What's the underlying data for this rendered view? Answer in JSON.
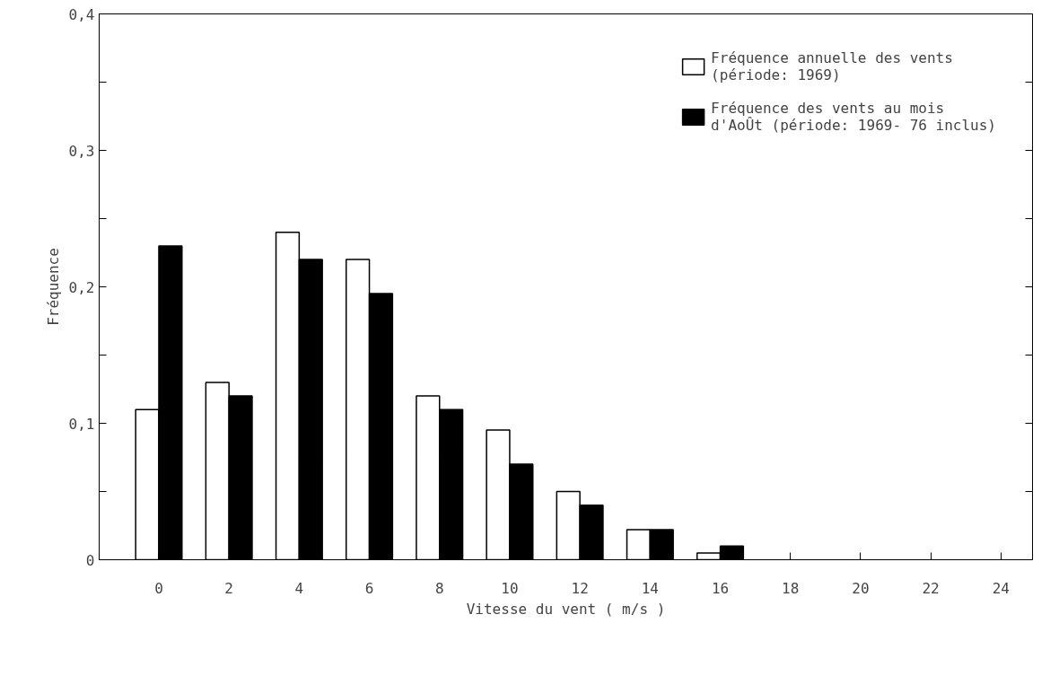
{
  "chart_data": {
    "type": "bar",
    "xlabel": "Vitesse du vent ( m/s )",
    "ylabel": "Fréquence",
    "x": [
      0,
      2,
      4,
      6,
      8,
      10,
      12,
      14,
      16
    ],
    "series": [
      {
        "name": "Fréquence annuelle des vents\n(période: 1969)",
        "color": "#ffffff",
        "values": [
          0.11,
          0.13,
          0.24,
          0.22,
          0.12,
          0.095,
          0.05,
          0.022,
          0.005
        ]
      },
      {
        "name": "Fréquence des vents au mois\nd'AoÛt (période: 1969- 76 inclus)",
        "color": "#000000",
        "values": [
          0.23,
          0.12,
          0.22,
          0.195,
          0.11,
          0.07,
          0.04,
          0.022,
          0.01
        ]
      }
    ],
    "xlim": [
      -1.7,
      24.9
    ],
    "ylim": [
      0,
      0.4
    ],
    "xticks": [
      0,
      2,
      4,
      6,
      8,
      10,
      12,
      14,
      16,
      18,
      20,
      22,
      24
    ],
    "yticks": [
      {
        "value": 0,
        "label": "0"
      },
      {
        "value": 0.05,
        "label": null
      },
      {
        "value": 0.1,
        "label": "0,1"
      },
      {
        "value": 0.15,
        "label": null
      },
      {
        "value": 0.2,
        "label": "0,2"
      },
      {
        "value": 0.25,
        "label": null
      },
      {
        "value": 0.3,
        "label": "0,3"
      },
      {
        "value": 0.35,
        "label": null
      },
      {
        "value": 0.4,
        "label": "0,4"
      }
    ],
    "grid": false,
    "legend": "top right"
  }
}
